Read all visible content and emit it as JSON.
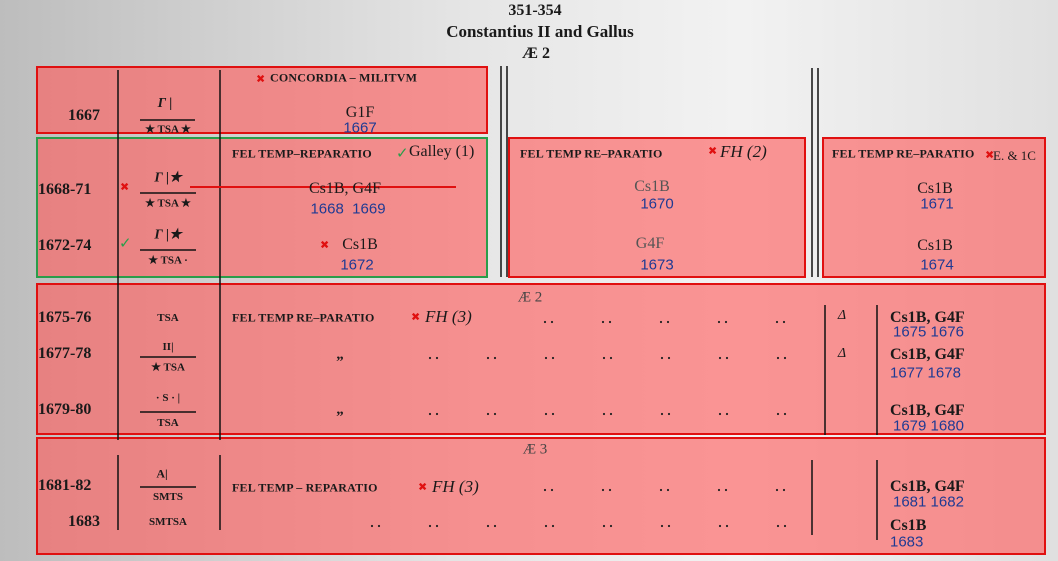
{
  "header": {
    "range": "351-354",
    "title": "Constantius II and Gallus",
    "metal": "Æ 2"
  },
  "concordia": {
    "number": "1667",
    "mint_top": "Γ |",
    "mint_bottom": "★ TSA ★",
    "legend": "CONCORDIA – MILITVM",
    "type": "G1F",
    "note": "1667"
  },
  "galley": {
    "legend": "FEL TEMP–REPARATIO",
    "type": "Galley (1)",
    "rows": [
      {
        "number": "1668-71",
        "mint_top": "Γ |★",
        "mint_bottom": "★ TSA ★",
        "types": "Cs1B, G4F",
        "note": "1668  1669"
      },
      {
        "number": "1672-74",
        "mint_top": "Γ |★",
        "mint_bottom": "★ TSA ·",
        "types": "Cs1B",
        "note": "1672"
      }
    ]
  },
  "fh2": {
    "legend": "FEL TEMP RE–PARATIO",
    "type": "FH (2)",
    "rows": [
      {
        "types": "Cs1B",
        "note": "1670"
      },
      {
        "types": "G4F",
        "note": "1673"
      }
    ]
  },
  "fh2_variant": {
    "legend": "FEL TEMP RE–PARATIO",
    "type": "E. & 1C",
    "rows": [
      {
        "types": "Cs1B",
        "note": "1671"
      },
      {
        "types": "Cs1B",
        "note": "1674"
      }
    ]
  },
  "ae2": {
    "heading": "Æ 2",
    "legend": "FEL TEMP RE–PARATIO",
    "type": "FH (3)",
    "rows": [
      {
        "number": "1675-76",
        "mint": "TSA",
        "officina": "Δ",
        "types": "Cs1B, G4F",
        "note": "1675 1676"
      },
      {
        "number": "1677-78",
        "mint_top": "II|",
        "mint_bottom": "★ TSA",
        "ditto": "„",
        "officina": "Δ",
        "types": "Cs1B, G4F",
        "note": "1677 1678"
      },
      {
        "number": "1679-80",
        "mint_top": "· S · |",
        "mint_bottom": "TSA",
        "ditto": "„",
        "types": "Cs1B, G4F",
        "note": "1679 1680"
      }
    ]
  },
  "ae3": {
    "heading": "Æ 3",
    "legend": "FEL TEMP – REPARATIO",
    "type": "FH (3)",
    "rows": [
      {
        "number": "1681-82",
        "mint_top": "A|",
        "mint_bottom": "SMTS",
        "types": "Cs1B, G4F",
        "note": "1681 1682"
      },
      {
        "number": "1683",
        "mint": "SMTSA",
        "types": "Cs1B",
        "note": "1683"
      }
    ]
  }
}
